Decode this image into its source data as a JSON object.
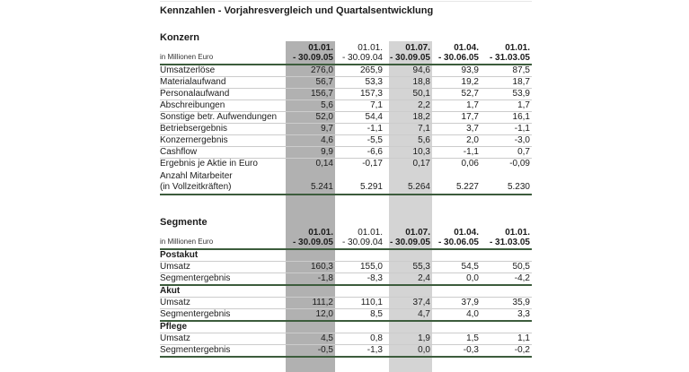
{
  "page": {
    "title": "Kennzahlen - Vorjahresvergleich und Quartalsentwicklung"
  },
  "columns": {
    "unit_label": "in Millionen Euro",
    "headers": [
      {
        "line1": "01.01.",
        "line2": "- 30.09.05",
        "bold": true,
        "highlight": "dark"
      },
      {
        "line1": "01.01.",
        "line2": "- 30.09.04",
        "bold": false,
        "highlight": null
      },
      {
        "line1": "01.07.",
        "line2": "- 30.09.05",
        "bold": true,
        "highlight": "light"
      },
      {
        "line1": "01.04.",
        "line2": "- 30.06.05",
        "bold": true,
        "highlight": null
      },
      {
        "line1": "01.01.",
        "line2": "- 31.03.05",
        "bold": true,
        "highlight": null
      }
    ]
  },
  "konzern": {
    "heading": "Konzern",
    "rows": [
      {
        "label": "Umsatzerlöse",
        "values": [
          "276,0",
          "265,9",
          "94,6",
          "93,9",
          "87,5"
        ]
      },
      {
        "label": "Materialaufwand",
        "values": [
          "56,7",
          "53,3",
          "18,8",
          "19,2",
          "18,7"
        ]
      },
      {
        "label": "Personalaufwand",
        "values": [
          "156,7",
          "157,3",
          "50,1",
          "52,7",
          "53,9"
        ]
      },
      {
        "label": "Abschreibungen",
        "values": [
          "5,6",
          "7,1",
          "2,2",
          "1,7",
          "1,7"
        ]
      },
      {
        "label": "Sonstige betr. Aufwendungen",
        "values": [
          "52,0",
          "54,4",
          "18,2",
          "17,7",
          "16,1"
        ]
      },
      {
        "label": "Betriebsergebnis",
        "values": [
          "9,7",
          "-1,1",
          "7,1",
          "3,7",
          "-1,1"
        ]
      },
      {
        "label": "Konzernergebnis",
        "values": [
          "4,6",
          "-5,5",
          "5,6",
          "2,0",
          "-3,0"
        ]
      },
      {
        "label": "Cashflow",
        "values": [
          "9,9",
          "-6,6",
          "10,3",
          "-1,1",
          "0,7"
        ]
      },
      {
        "label": "Ergebnis je Aktie in Euro",
        "values": [
          "0,14",
          "-0,17",
          "0,17",
          "0,06",
          "-0,09"
        ],
        "no_divider_below": true
      },
      {
        "label": "Anzahl Mitarbeiter",
        "label2": "(in Vollzeitkräften)",
        "values": [
          "5.241",
          "5.291",
          "5.264",
          "5.227",
          "5.230"
        ]
      }
    ]
  },
  "segmente": {
    "heading": "Segmente",
    "groups": [
      {
        "name": "Postakut",
        "rows": [
          {
            "label": "Umsatz",
            "values": [
              "160,3",
              "155,0",
              "55,3",
              "54,5",
              "50,5"
            ]
          },
          {
            "label": "Segmentergebnis",
            "values": [
              "-1,8",
              "-8,3",
              "2,4",
              "0,0",
              "-4,2"
            ]
          }
        ]
      },
      {
        "name": "Akut",
        "rows": [
          {
            "label": "Umsatz",
            "values": [
              "111,2",
              "110,1",
              "37,4",
              "37,9",
              "35,9"
            ]
          },
          {
            "label": "Segmentergebnis",
            "values": [
              "12,0",
              "8,5",
              "4,7",
              "4,0",
              "3,3"
            ]
          }
        ]
      },
      {
        "name": "Pflege",
        "rows": [
          {
            "label": "Umsatz",
            "values": [
              "4,5",
              "0,8",
              "1,9",
              "1,5",
              "1,1"
            ]
          },
          {
            "label": "Segmentergebnis",
            "values": [
              "-0,5",
              "-1,3",
              "0,0",
              "-0,3",
              "-0,2"
            ]
          }
        ]
      }
    ]
  },
  "colors": {
    "band_dark": "#b1b1b1",
    "band_light": "#d4d4d4",
    "rule_green": "#3c5c3c",
    "divider_gray": "#cccccc",
    "text": "#1c1c1c"
  }
}
